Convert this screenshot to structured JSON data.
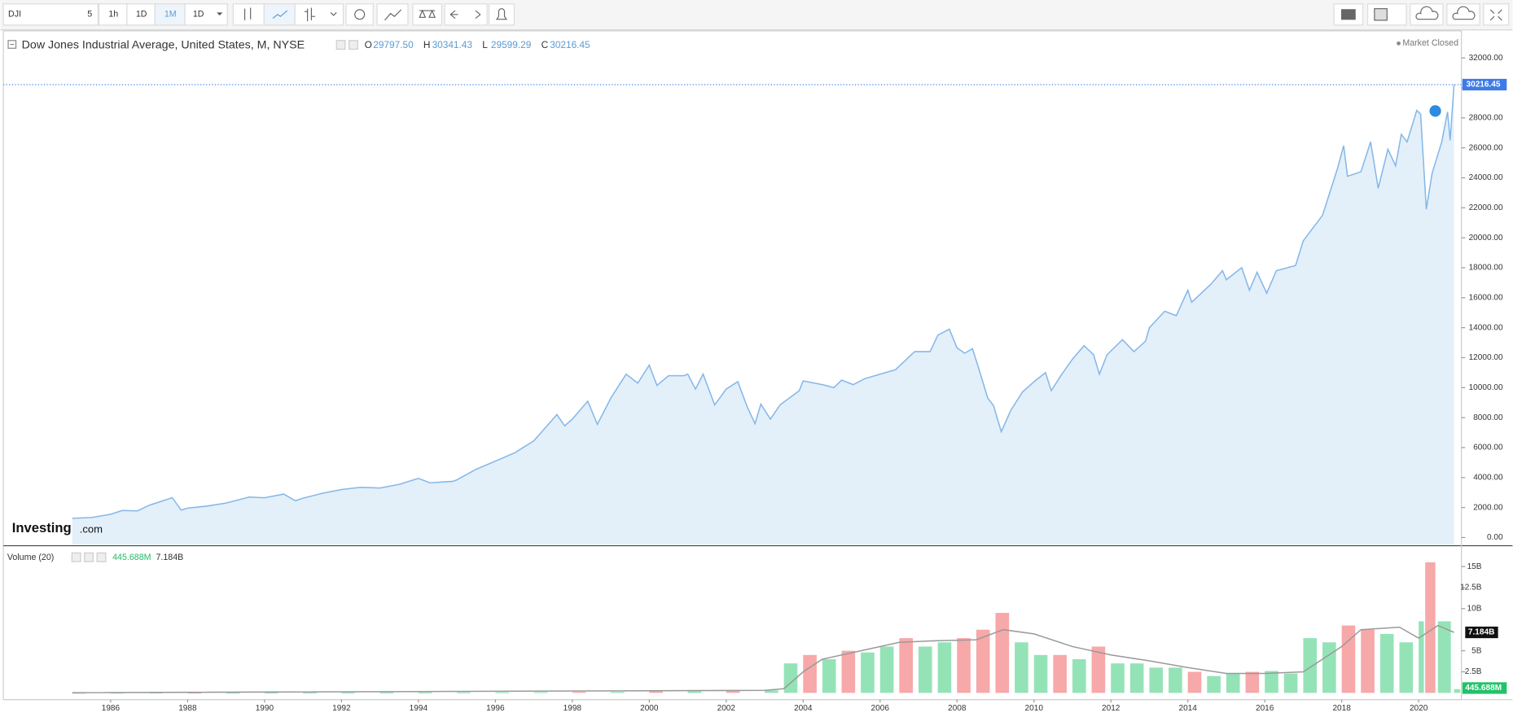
{
  "toolbar": {
    "symbol": "DJI",
    "intervals": [
      "5",
      "1h",
      "1D",
      "1M",
      "1D"
    ]
  },
  "logo": [
    "Investing",
    ".com"
  ],
  "chart_data": [
    {
      "type": "area",
      "title": "Dow Jones Industrial Average, United States, M, NYSE",
      "ohlc": [
        [
          "O",
          "29797.50"
        ],
        [
          "H",
          "30341.43"
        ],
        [
          "L",
          "29599.29"
        ],
        [
          "C",
          "30216.45"
        ]
      ],
      "status": "Market Closed",
      "color": "#86b7e8",
      "fill": "#e3f0fa",
      "x": [
        1985,
        1985.5,
        1986,
        1986.3,
        1986.7,
        1987,
        1987.6,
        1987.83,
        1988,
        1988.5,
        1989,
        1989.6,
        1990,
        1990.5,
        1990.8,
        1991,
        1991.5,
        1992,
        1992.5,
        1993,
        1993.5,
        1994,
        1994.3,
        1994.9,
        1995,
        1995.5,
        1996,
        1996.5,
        1997,
        1997.6,
        1997.8,
        1998,
        1998.4,
        1998.65,
        1999,
        1999.4,
        1999.7,
        2000,
        2000.2,
        2000.5,
        2000.9,
        2001,
        2001.2,
        2001.4,
        2001.7,
        2002,
        2002.3,
        2002.55,
        2002.75,
        2002.9,
        2003.15,
        2003.4,
        2003.9,
        2004,
        2004.5,
        2004.8,
        2005,
        2005.3,
        2005.6,
        2006,
        2006.4,
        2006.9,
        2007.3,
        2007.5,
        2007.8,
        2008,
        2008.2,
        2008.4,
        2008.55,
        2008.8,
        2008.95,
        2009.15,
        2009.4,
        2009.7,
        2010,
        2010.3,
        2010.45,
        2010.7,
        2011,
        2011.3,
        2011.55,
        2011.7,
        2011.9,
        2012.3,
        2012.6,
        2012.9,
        2013,
        2013.4,
        2013.7,
        2014,
        2014.1,
        2014.6,
        2014.9,
        2015,
        2015.4,
        2015.6,
        2015.8,
        2016.05,
        2016.3,
        2016.8,
        2017,
        2017.5,
        2017.9,
        2018.05,
        2018.15,
        2018.5,
        2018.75,
        2018.95,
        2019.2,
        2019.4,
        2019.55,
        2019.7,
        2019.95,
        2020.05,
        2020.2,
        2020.35,
        2020.6,
        2020.75,
        2020.82,
        2020.92
      ],
      "values": [
        1280,
        1330,
        1550,
        1800,
        1780,
        2150,
        2660,
        1830,
        1960,
        2100,
        2300,
        2700,
        2650,
        2900,
        2450,
        2630,
        2950,
        3200,
        3350,
        3300,
        3550,
        3950,
        3650,
        3750,
        3850,
        4550,
        5100,
        5650,
        6450,
        8200,
        7450,
        7900,
        9100,
        7550,
        9300,
        10900,
        10300,
        11500,
        10150,
        10800,
        10800,
        10900,
        9900,
        10900,
        8850,
        9900,
        10400,
        8700,
        7600,
        8900,
        7900,
        8850,
        9800,
        10450,
        10200,
        10000,
        10500,
        10200,
        10600,
        10900,
        11200,
        12400,
        12400,
        13500,
        13900,
        12650,
        12300,
        12600,
        11400,
        9300,
        8800,
        7060,
        8500,
        9700,
        10400,
        11000,
        9800,
        10800,
        11900,
        12800,
        12200,
        10900,
        12200,
        13200,
        12400,
        13100,
        14000,
        15100,
        14800,
        16500,
        15700,
        16900,
        17800,
        17200,
        18000,
        16500,
        17700,
        16300,
        17800,
        18150,
        19800,
        21500,
        24700,
        26150,
        24100,
        24400,
        26400,
        23300,
        25900,
        24800,
        26900,
        26400,
        28500,
        28250,
        21900,
        24300,
        26400,
        28400,
        26500,
        30216.45
      ],
      "xlim": [
        1983.21,
        2021.11
      ],
      "ylim": [
        -515,
        33803
      ],
      "yticks": [
        {
          "value": 0,
          "label": "0.00"
        },
        {
          "value": 2000,
          "label": "2000.00"
        },
        {
          "value": 4000,
          "label": "4000.00"
        },
        {
          "value": 6000,
          "label": "6000.00"
        },
        {
          "value": 8000,
          "label": "8000.00"
        },
        {
          "value": 10000,
          "label": "10000.00"
        },
        {
          "value": 12000,
          "label": "12000.00"
        },
        {
          "value": 14000,
          "label": "14000.00"
        },
        {
          "value": 16000,
          "label": "16000.00"
        },
        {
          "value": 18000,
          "label": "18000.00"
        },
        {
          "value": 20000,
          "label": "20000.00"
        },
        {
          "value": 22000,
          "label": "22000.00"
        },
        {
          "value": 24000,
          "label": "24000.00"
        },
        {
          "value": 26000,
          "label": "26000.00"
        },
        {
          "value": 28000,
          "label": "28000.00"
        },
        {
          "value": 30000,
          "label": "30000.00"
        },
        {
          "value": 32000,
          "label": "32000.00"
        }
      ]
    },
    {
      "type": "bar",
      "title": "Volume (20)",
      "legend_values": [
        "445.688M",
        "7.184B"
      ],
      "x": [
        1985,
        1986,
        1987,
        1988,
        1989,
        1990,
        1991,
        1992,
        1993,
        1994,
        1995,
        1996,
        1997,
        1998,
        1999,
        2000,
        2001,
        2002,
        2003,
        2003.5,
        2004,
        2004.5,
        2005,
        2005.5,
        2006,
        2006.5,
        2007,
        2007.5,
        2008,
        2008.5,
        2009,
        2009.5,
        2010,
        2010.5,
        2011,
        2011.5,
        2012,
        2012.5,
        2013,
        2013.5,
        2014,
        2014.5,
        2015,
        2015.5,
        2016,
        2016.5,
        2017,
        2017.5,
        2018,
        2018.5,
        2019,
        2019.5,
        2020,
        2020.17,
        2020.5,
        2020.92
      ],
      "values": [
        20000000,
        30000000,
        50000000,
        40000000,
        40000000,
        50000000,
        50000000,
        50000000,
        60000000,
        60000000,
        70000000,
        80000000,
        100000000,
        120000000,
        120000000,
        180000000,
        200000000,
        250000000,
        300000000,
        3500000000,
        4500000000,
        4000000000,
        5000000000,
        4800000000,
        5500000000,
        6500000000,
        5500000000,
        6000000000,
        6500000000,
        7500000000,
        9500000000,
        6000000000,
        4500000000,
        4500000000,
        4000000000,
        5500000000,
        3500000000,
        3500000000,
        3000000000,
        3000000000,
        2500000000,
        2000000000,
        2300000000,
        2500000000,
        2600000000,
        2300000000,
        6500000000,
        6000000000,
        8000000000,
        7500000000,
        7000000000,
        6000000000,
        8500000000,
        15500000000,
        8500000000,
        445688000
      ],
      "colors": [
        "#94e3b7",
        "#94e3b7",
        "#94e3b7",
        "#f7a8a8",
        "#94e3b7",
        "#94e3b7",
        "#94e3b7",
        "#94e3b7",
        "#94e3b7",
        "#94e3b7",
        "#94e3b7",
        "#94e3b7",
        "#94e3b7",
        "#f7a8a8",
        "#94e3b7",
        "#f7a8a8",
        "#94e3b7",
        "#f7a8a8",
        "#94e3b7",
        "#94e3b7",
        "#f7a8a8",
        "#94e3b7",
        "#f7a8a8",
        "#94e3b7",
        "#94e3b7",
        "#f7a8a8",
        "#94e3b7",
        "#94e3b7",
        "#f7a8a8",
        "#f7a8a8",
        "#f7a8a8",
        "#94e3b7",
        "#94e3b7",
        "#f7a8a8",
        "#94e3b7",
        "#f7a8a8",
        "#94e3b7",
        "#94e3b7",
        "#94e3b7",
        "#94e3b7",
        "#f7a8a8",
        "#94e3b7",
        "#94e3b7",
        "#f7a8a8",
        "#94e3b7",
        "#94e3b7",
        "#94e3b7",
        "#94e3b7",
        "#f7a8a8",
        "#f7a8a8",
        "#94e3b7",
        "#94e3b7",
        "#94e3b7",
        "#f7a8a8",
        "#94e3b7",
        "#94e3b7"
      ],
      "ma_color": "#9a9a9a",
      "ma_x": [
        1985,
        2003,
        2003.5,
        2004,
        2004.5,
        2005.5,
        2006.5,
        2007.5,
        2008.5,
        2009.2,
        2010,
        2011,
        2012,
        2013,
        2014,
        2015,
        2016,
        2017,
        2017.5,
        2018,
        2018.5,
        2019.5,
        2020,
        2020.5,
        2020.92
      ],
      "ma_values": [
        20000000,
        300000000,
        500000000,
        2500000000,
        4000000000,
        5000000000,
        6000000000,
        6200000000,
        6300000000,
        7500000000,
        7000000000,
        5500000000,
        4500000000,
        3800000000,
        3000000000,
        2300000000,
        2300000000,
        2500000000,
        4000000000,
        5500000000,
        7500000000,
        7800000000,
        6500000000,
        8000000000,
        7184000000
      ],
      "xlim": [
        1983.21,
        2021.11
      ],
      "ylim": [
        -800000000,
        17300000000
      ],
      "xticks": [
        1986,
        1988,
        1990,
        1992,
        1994,
        1996,
        1998,
        2000,
        2002,
        2004,
        2006,
        2008,
        2010,
        2012,
        2014,
        2016,
        2018,
        2020
      ],
      "yticks": [
        {
          "value": 2500000000,
          "label": "2.5B"
        },
        {
          "value": 5000000000,
          "label": "5B"
        },
        {
          "value": 10000000000,
          "label": "10B"
        },
        {
          "value": 12500000000,
          "label": "12.5B"
        },
        {
          "value": 15000000000,
          "label": "15B"
        }
      ]
    }
  ]
}
